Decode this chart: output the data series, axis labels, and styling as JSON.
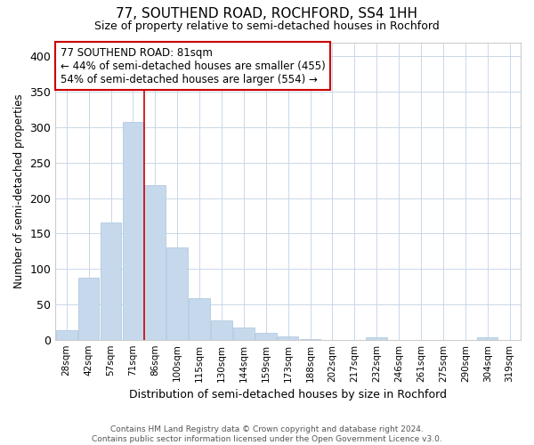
{
  "title": "77, SOUTHEND ROAD, ROCHFORD, SS4 1HH",
  "subtitle": "Size of property relative to semi-detached houses in Rochford",
  "xlabel": "Distribution of semi-detached houses by size in Rochford",
  "ylabel": "Number of semi-detached properties",
  "categories": [
    "28sqm",
    "42sqm",
    "57sqm",
    "71sqm",
    "86sqm",
    "100sqm",
    "115sqm",
    "130sqm",
    "144sqm",
    "159sqm",
    "173sqm",
    "188sqm",
    "202sqm",
    "217sqm",
    "232sqm",
    "246sqm",
    "261sqm",
    "275sqm",
    "290sqm",
    "304sqm",
    "319sqm"
  ],
  "values": [
    13,
    87,
    165,
    307,
    218,
    130,
    59,
    27,
    17,
    10,
    4,
    1,
    0,
    0,
    3,
    0,
    0,
    0,
    0,
    3,
    0
  ],
  "bar_color": "#c6d9ec",
  "bar_edge_color": "#a8c4dc",
  "annotation_text_line1": "77 SOUTHEND ROAD: 81sqm",
  "annotation_text_line2": "← 44% of semi-detached houses are smaller (455)",
  "annotation_text_line3": "54% of semi-detached houses are larger (554) →",
  "annotation_box_color": "#ffffff",
  "annotation_box_edge_color": "#cc0000",
  "vline_color": "#cc0000",
  "vline_x_index": 3.5,
  "ylim": [
    0,
    420
  ],
  "yticks": [
    0,
    50,
    100,
    150,
    200,
    250,
    300,
    350,
    400
  ],
  "footer_line1": "Contains HM Land Registry data © Crown copyright and database right 2024.",
  "footer_line2": "Contains public sector information licensed under the Open Government Licence v3.0.",
  "background_color": "#ffffff",
  "grid_color": "#c8d8e8"
}
